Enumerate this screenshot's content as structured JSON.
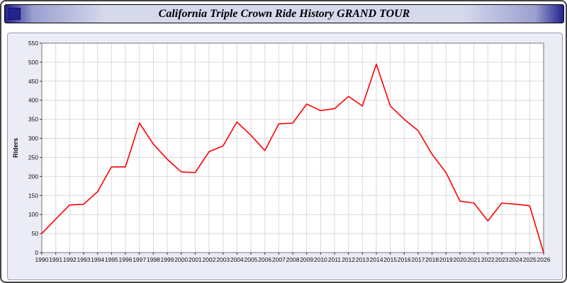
{
  "window": {
    "title": "California Triple Crown Ride History GRAND TOUR"
  },
  "chart_data": {
    "type": "line",
    "title": "California Triple Crown Ride History GRAND TOUR",
    "xlabel": "",
    "ylabel": "Riders",
    "x": [
      1990,
      1991,
      1992,
      1993,
      1994,
      1995,
      1996,
      1997,
      1998,
      1999,
      2000,
      2001,
      2002,
      2003,
      2004,
      2005,
      2006,
      2007,
      2008,
      2009,
      2010,
      2011,
      2012,
      2013,
      2014,
      2015,
      2016,
      2017,
      2018,
      2019,
      2020,
      2021,
      2022,
      2023,
      2024,
      2025,
      2026
    ],
    "values": [
      50,
      88,
      125,
      127,
      160,
      225,
      225,
      340,
      285,
      245,
      212,
      210,
      265,
      280,
      343,
      308,
      268,
      338,
      340,
      390,
      373,
      378,
      410,
      385,
      495,
      385,
      350,
      320,
      258,
      210,
      135,
      130,
      83,
      130,
      127,
      123,
      0
    ],
    "ylim": [
      0,
      550
    ],
    "ytick_step": 50,
    "grid": true,
    "legend": "none",
    "line_color": "#ff0000",
    "plot_bg": "#ffffff",
    "panel_bg": "#ebecf5",
    "grid_color": "#d9d9de"
  }
}
